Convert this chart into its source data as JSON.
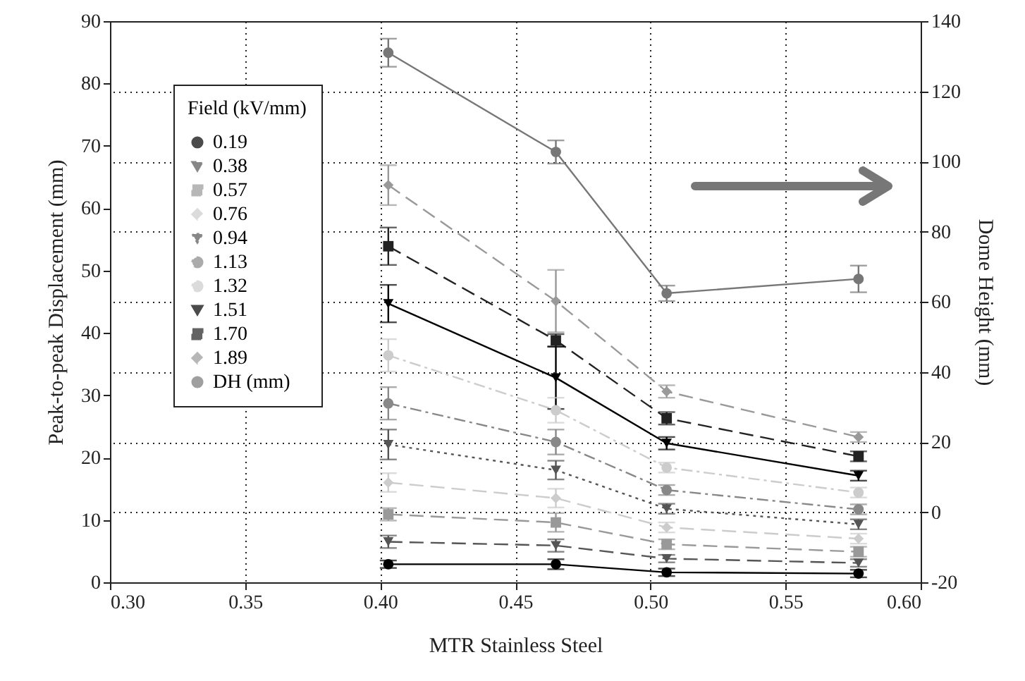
{
  "chart_data": {
    "type": "line",
    "xlabel": "MTR Stainless Steel",
    "ylabel": "Peak-to-peak Displacement (mm)",
    "y2label": "Dome Height (mm)",
    "legend_title": "Field (kV/mm)",
    "legend": "top left",
    "grid": true,
    "x": [
      0.403,
      0.465,
      0.506,
      0.577
    ],
    "xlim": [
      0.3,
      0.6
    ],
    "xticks": [
      {
        "value": 0.3,
        "label": "0.30"
      },
      {
        "value": 0.35,
        "label": "0.35"
      },
      {
        "value": 0.4,
        "label": "0.40"
      },
      {
        "value": 0.45,
        "label": "0.45"
      },
      {
        "value": 0.5,
        "label": "0.50"
      },
      {
        "value": 0.55,
        "label": "0.55"
      },
      {
        "value": 0.6,
        "label": "0.60"
      }
    ],
    "ylim": [
      0,
      90
    ],
    "yticks": [
      0,
      10,
      20,
      30,
      40,
      50,
      60,
      70,
      80,
      90
    ],
    "y2lim": [
      -20,
      140
    ],
    "y2ticks": [
      -20,
      0,
      20,
      40,
      60,
      80,
      100,
      120,
      140
    ],
    "series": [
      {
        "name": "0.19",
        "color": "#000000",
        "marker": "circle",
        "line_style": "solid",
        "values": [
          2.9,
          2.9,
          1.6,
          1.4
        ],
        "errors": [
          0.6,
          0.8,
          0.6,
          0.6
        ]
      },
      {
        "name": "0.38",
        "color": "#555555",
        "marker": "triangle",
        "line_style": "dashed",
        "values": [
          6.5,
          5.9,
          3.8,
          3.1
        ],
        "errors": [
          1,
          1,
          0.6,
          0.6
        ]
      },
      {
        "name": "0.57",
        "color": "#999999",
        "marker": "square",
        "line_style": "dashed",
        "values": [
          10.9,
          9.6,
          6.1,
          4.9
        ],
        "errors": [
          1,
          1.5,
          0.8,
          0.8
        ]
      },
      {
        "name": "0.76",
        "color": "#cccccc",
        "marker": "diamond",
        "line_style": "dashed",
        "values": [
          16.0,
          13.5,
          8.8,
          7.0
        ],
        "errors": [
          1.5,
          1.5,
          0.8,
          0.8
        ]
      },
      {
        "name": "0.94",
        "color": "#555555",
        "marker": "triangle",
        "line_style": "dotted",
        "values": [
          22.1,
          18.0,
          11.8,
          9.3
        ],
        "errors": [
          2.4,
          1.5,
          0.8,
          0.8
        ]
      },
      {
        "name": "1.13",
        "color": "#888888",
        "marker": "circle",
        "line_style": "dashdot",
        "values": [
          28.7,
          22.5,
          14.8,
          11.7
        ],
        "errors": [
          2.6,
          2,
          0.8,
          0.8
        ]
      },
      {
        "name": "1.32",
        "color": "#cccccc",
        "marker": "circle",
        "line_style": "dashdot",
        "values": [
          36.4,
          27.6,
          18.4,
          14.4
        ],
        "errors": [
          2.6,
          2,
          0.8,
          0.8
        ]
      },
      {
        "name": "1.51",
        "color": "#000000",
        "marker": "triangle",
        "line_style": "solid",
        "values": [
          44.7,
          32.8,
          22.3,
          17.1
        ],
        "errors": [
          3,
          5,
          1,
          0.8
        ]
      },
      {
        "name": "1.70",
        "color": "#222222",
        "marker": "square",
        "line_style": "dashed",
        "values": [
          53.9,
          38.8,
          26.3,
          20.2
        ],
        "errors": [
          3,
          1,
          1,
          0.8
        ]
      },
      {
        "name": "1.89",
        "color": "#999999",
        "marker": "diamond",
        "line_style": "dashed",
        "values": [
          63.7,
          45.1,
          30.6,
          23.3
        ],
        "errors": [
          3.2,
          5,
          1,
          0.8
        ]
      },
      {
        "name": "DH (mm)",
        "color": "#777777",
        "marker": "circle",
        "line_style": "solid",
        "axis": "y2",
        "values": [
          131,
          102.7,
          62.4,
          66.5
        ],
        "errors": [
          4,
          3.3,
          2.2,
          3.8
        ]
      }
    ]
  }
}
